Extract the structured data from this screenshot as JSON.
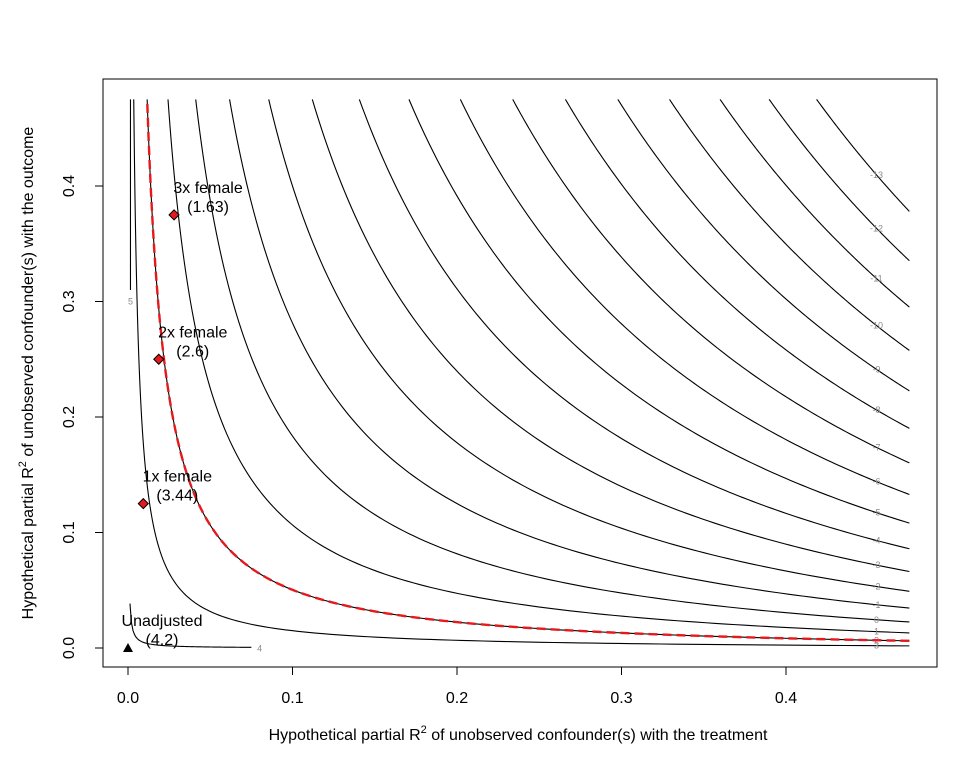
{
  "chart_data": {
    "type": "contour",
    "xlabel_main": "Hypothetical partial R",
    "xlabel_sup": "2",
    "xlabel_rest": " of unobserved confounder(s) with the treatment",
    "ylabel_main": "Hypothetical partial R",
    "ylabel_sup": "2",
    "ylabel_rest": " of unobserved confounder(s) with the outcome",
    "xlim": [
      0,
      0.475
    ],
    "ylim": [
      0,
      0.475
    ],
    "x_ticks": [
      {
        "value": 0.0,
        "label": "0.0"
      },
      {
        "value": 0.1,
        "label": "0.1"
      },
      {
        "value": 0.2,
        "label": "0.2"
      },
      {
        "value": 0.3,
        "label": "0.3"
      },
      {
        "value": 0.4,
        "label": "0.4"
      }
    ],
    "y_ticks": [
      {
        "value": 0.0,
        "label": "0.0"
      },
      {
        "value": 0.1,
        "label": "0.1"
      },
      {
        "value": 0.2,
        "label": "0.2"
      },
      {
        "value": 0.3,
        "label": "0.3"
      },
      {
        "value": 0.4,
        "label": "0.4"
      }
    ],
    "estimate": 4.2,
    "contour_levels": [
      {
        "level": 5,
        "label": "5"
      },
      {
        "level": 4,
        "label": "4"
      },
      {
        "level": 3,
        "label": "3"
      },
      {
        "level": 2,
        "label": "2"
      },
      {
        "level": 1,
        "label": "1"
      },
      {
        "level": 0,
        "label": "0"
      },
      {
        "level": -1,
        "label": "-1"
      },
      {
        "level": -2,
        "label": "-2"
      },
      {
        "level": -3,
        "label": "-3"
      },
      {
        "level": -4,
        "label": "-4"
      },
      {
        "level": -5,
        "label": "-5"
      },
      {
        "level": -6,
        "label": "-6"
      },
      {
        "level": -7,
        "label": "-7"
      },
      {
        "level": -8,
        "label": "-8"
      },
      {
        "level": -9,
        "label": "-9"
      },
      {
        "level": -10,
        "label": "-10"
      },
      {
        "level": -11,
        "label": "-11"
      },
      {
        "level": -12,
        "label": "-12"
      },
      {
        "level": -13,
        "label": "-13"
      }
    ],
    "threshold": {
      "level": 2,
      "color": "#e41a1c",
      "style": "dashed"
    },
    "points": [
      {
        "name": "unadjusted",
        "x": 0.0,
        "y": 0.0,
        "marker": "triangle",
        "line1": "Unadjusted",
        "line2": "(4.2)"
      },
      {
        "name": "1x-female",
        "x": 0.0093,
        "y": 0.125,
        "marker": "diamond",
        "line1": "1x female",
        "line2": "(3.44)"
      },
      {
        "name": "2x-female",
        "x": 0.0187,
        "y": 0.25,
        "marker": "diamond",
        "line1": "2x female",
        "line2": "(2.6)"
      },
      {
        "name": "3x-female",
        "x": 0.028,
        "y": 0.375,
        "marker": "diamond",
        "line1": "3x female",
        "line2": "(1.63)"
      }
    ],
    "colors": {
      "contour": "#000000",
      "threshold": "#e41a1c",
      "diamond_fill": "#e41a1c",
      "label": "#8a8a8a"
    },
    "grid": false,
    "legend": "none"
  }
}
